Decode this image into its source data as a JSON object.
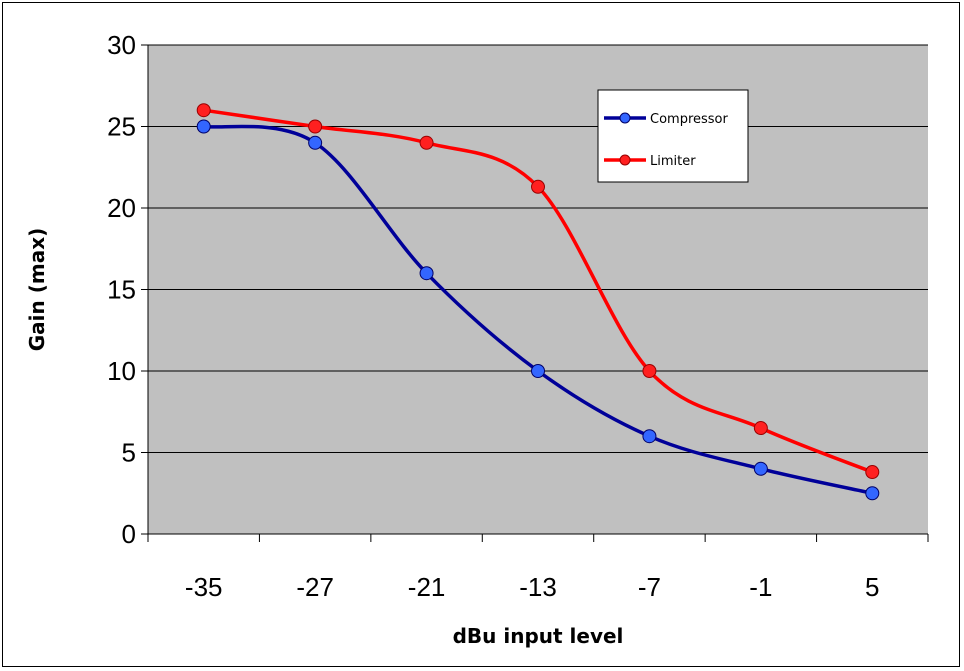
{
  "chart_data": {
    "type": "line",
    "title": "",
    "xlabel": "dBu input level",
    "ylabel": "Gain (max)",
    "categories": [
      "-35",
      "-27",
      "-21",
      "-13",
      "-7",
      "-1",
      "5"
    ],
    "x_ticks": [
      "-35",
      "-27",
      "-21",
      "-13",
      "-7",
      "-1",
      "5"
    ],
    "y_ticks": [
      0,
      5,
      10,
      15,
      20,
      25,
      30
    ],
    "ylim": [
      0,
      30
    ],
    "grid": "horizontal",
    "legend_position": "top-right",
    "plot_background": "#c0c0c0",
    "series": [
      {
        "name": "Compressor",
        "color": "#000099",
        "values": [
          25,
          24,
          16,
          10,
          6,
          4,
          2.5
        ]
      },
      {
        "name": "Limiter",
        "color": "#ff0000",
        "values": [
          26,
          25,
          24,
          21.3,
          10,
          6.5,
          3.8
        ]
      }
    ]
  }
}
